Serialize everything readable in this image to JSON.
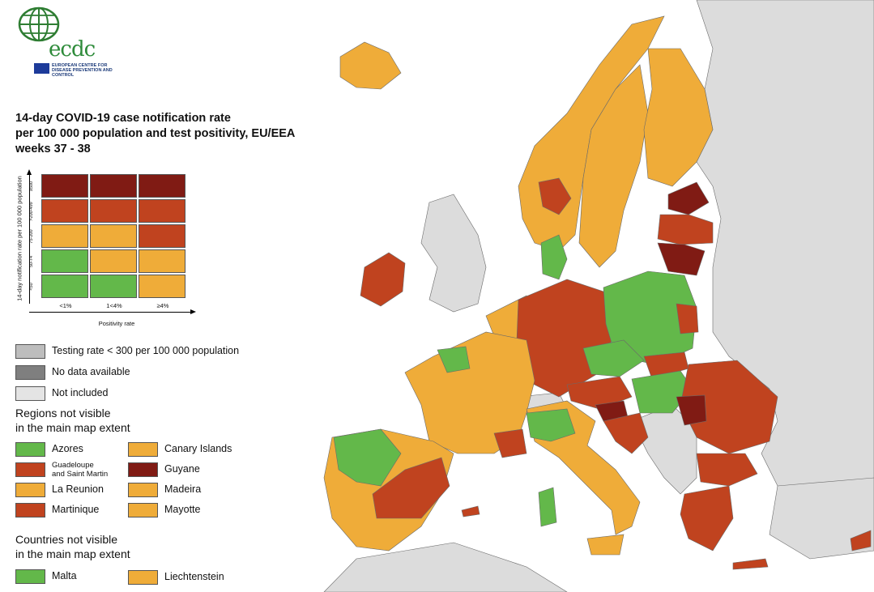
{
  "logo": {
    "wordmark": "ecdc",
    "subtitle": "EUROPEAN CENTRE FOR DISEASE PREVENTION AND CONTROL"
  },
  "title": {
    "line1": "14-day COVID-19 case notification rate",
    "line2": "per 100 000 population and test positivity, EU/EEA",
    "line3": "weeks 37 - 38"
  },
  "colors": {
    "green": "#63b84a",
    "orange": "#efac39",
    "red": "#c0431f",
    "darkred": "#801b14",
    "grey": "#bdbdbd",
    "darkgrey": "#7f7f7f",
    "lightgrey": "#e4e4e4",
    "nonEU": "#dcdcdc",
    "sea": "#ffffff"
  },
  "matrix": {
    "y_axis_label": "14-day notification rate per 100 000 population",
    "x_axis_label": "Positivity rate",
    "y_bins": [
      "≥500",
      ">200-499",
      "75-200",
      "50-74",
      "<50"
    ],
    "x_bins": [
      "<1%",
      "1<4%",
      "≥4%"
    ],
    "cells": [
      [
        "darkred",
        "darkred",
        "darkred"
      ],
      [
        "red",
        "red",
        "red"
      ],
      [
        "orange",
        "orange",
        "red"
      ],
      [
        "green",
        "orange",
        "orange"
      ],
      [
        "green",
        "green",
        "orange"
      ]
    ]
  },
  "legend": {
    "testing_rate": "Testing rate < 300 per 100 000 population",
    "no_data": "No data available",
    "not_included": "Not included"
  },
  "regions_heading": {
    "line1": "Regions not visible",
    "line2": "in the main map extent"
  },
  "regions": [
    {
      "name": "Azores",
      "color": "green"
    },
    {
      "name": "Canary Islands",
      "color": "orange"
    },
    {
      "name_line1": "Guadeloupe",
      "name_line2": "and Saint Martin",
      "color": "red"
    },
    {
      "name": "Guyane",
      "color": "darkred"
    },
    {
      "name": "La Reunion",
      "color": "orange"
    },
    {
      "name": "Madeira",
      "color": "orange"
    },
    {
      "name": "Martinique",
      "color": "red"
    },
    {
      "name": "Mayotte",
      "color": "orange"
    }
  ],
  "countries_heading": {
    "line1": "Countries not visible",
    "line2": "in the main map extent"
  },
  "countries": [
    {
      "name": "Malta",
      "color": "green"
    },
    {
      "name": "Liechtenstein",
      "color": "orange"
    }
  ]
}
